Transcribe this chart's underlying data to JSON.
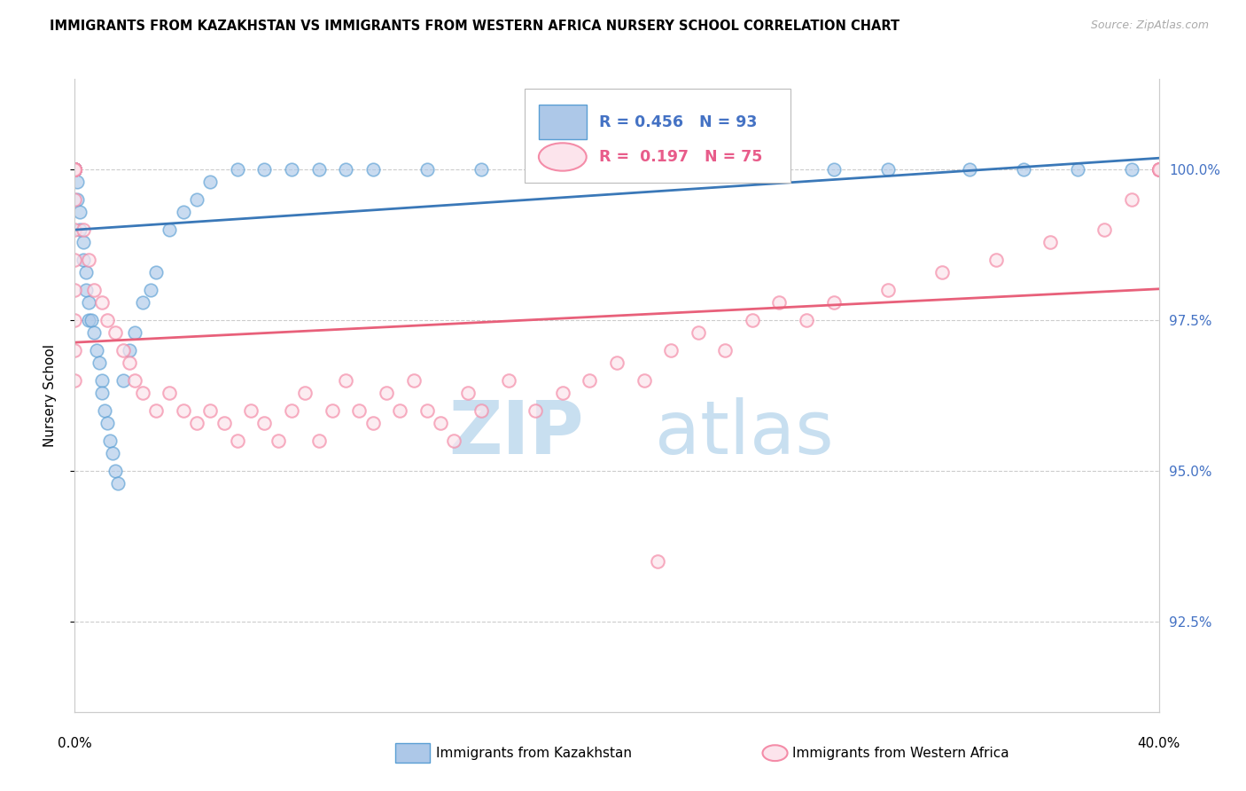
{
  "title": "IMMIGRANTS FROM KAZAKHSTAN VS IMMIGRANTS FROM WESTERN AFRICA NURSERY SCHOOL CORRELATION CHART",
  "source": "Source: ZipAtlas.com",
  "ylabel": "Nursery School",
  "y_ticks": [
    92.5,
    95.0,
    97.5,
    100.0
  ],
  "y_tick_labels": [
    "92.5%",
    "95.0%",
    "97.5%",
    "100.0%"
  ],
  "x_range": [
    0.0,
    40.0
  ],
  "y_range": [
    91.0,
    101.5
  ],
  "legend_blue_r": "R = 0.456",
  "legend_blue_n": "N = 93",
  "legend_pink_r": "R =  0.197",
  "legend_pink_n": "N = 75",
  "blue_fill_color": "#adc8e8",
  "blue_edge_color": "#5a9fd4",
  "pink_fill_color": "#fce4ec",
  "pink_edge_color": "#f48ca8",
  "blue_line_color": "#3a78b8",
  "pink_line_color": "#e8607a",
  "legend_blue_color": "#4472c4",
  "legend_pink_color": "#e85c8a",
  "tick_color": "#4472c4",
  "grid_color": "#cccccc",
  "watermark_zip_color": "#c8dff0",
  "watermark_atlas_color": "#c8dff0",
  "scatter_blue_x": [
    0.0,
    0.0,
    0.0,
    0.0,
    0.0,
    0.0,
    0.0,
    0.0,
    0.0,
    0.0,
    0.0,
    0.0,
    0.0,
    0.0,
    0.0,
    0.0,
    0.0,
    0.0,
    0.0,
    0.0,
    0.0,
    0.0,
    0.0,
    0.0,
    0.0,
    0.0,
    0.0,
    0.0,
    0.0,
    0.0,
    0.0,
    0.0,
    0.0,
    0.0,
    0.0,
    0.0,
    0.0,
    0.0,
    0.0,
    0.0,
    0.1,
    0.1,
    0.2,
    0.2,
    0.3,
    0.3,
    0.4,
    0.4,
    0.5,
    0.5,
    0.6,
    0.7,
    0.8,
    0.9,
    1.0,
    1.0,
    1.1,
    1.2,
    1.3,
    1.4,
    1.5,
    1.6,
    1.8,
    2.0,
    2.2,
    2.5,
    2.8,
    3.0,
    3.5,
    4.0,
    4.5,
    5.0,
    6.0,
    7.0,
    8.0,
    9.0,
    10.0,
    11.0,
    13.0,
    15.0,
    18.0,
    20.0,
    22.0,
    25.0,
    28.0,
    30.0,
    33.0,
    35.0,
    37.0,
    39.0,
    40.0,
    40.0,
    40.0
  ],
  "scatter_blue_y": [
    100.0,
    100.0,
    100.0,
    100.0,
    100.0,
    100.0,
    100.0,
    100.0,
    100.0,
    100.0,
    100.0,
    100.0,
    100.0,
    100.0,
    100.0,
    100.0,
    100.0,
    100.0,
    100.0,
    100.0,
    100.0,
    100.0,
    100.0,
    100.0,
    100.0,
    100.0,
    100.0,
    100.0,
    100.0,
    100.0,
    100.0,
    100.0,
    100.0,
    100.0,
    100.0,
    100.0,
    100.0,
    100.0,
    100.0,
    100.0,
    99.8,
    99.5,
    99.3,
    99.0,
    98.8,
    98.5,
    98.3,
    98.0,
    97.8,
    97.5,
    97.5,
    97.3,
    97.0,
    96.8,
    96.5,
    96.3,
    96.0,
    95.8,
    95.5,
    95.3,
    95.0,
    94.8,
    96.5,
    97.0,
    97.3,
    97.8,
    98.0,
    98.3,
    99.0,
    99.3,
    99.5,
    99.8,
    100.0,
    100.0,
    100.0,
    100.0,
    100.0,
    100.0,
    100.0,
    100.0,
    100.0,
    100.0,
    100.0,
    100.0,
    100.0,
    100.0,
    100.0,
    100.0,
    100.0,
    100.0,
    100.0,
    100.0,
    100.0
  ],
  "scatter_pink_x": [
    0.0,
    0.0,
    0.0,
    0.0,
    0.0,
    0.0,
    0.0,
    0.0,
    0.0,
    0.0,
    0.0,
    0.0,
    0.0,
    0.0,
    0.0,
    0.3,
    0.5,
    0.7,
    1.0,
    1.2,
    1.5,
    1.8,
    2.0,
    2.2,
    2.5,
    3.0,
    3.5,
    4.0,
    4.5,
    5.0,
    5.5,
    6.0,
    6.5,
    7.0,
    7.5,
    8.0,
    8.5,
    9.0,
    9.5,
    10.0,
    10.5,
    11.0,
    11.5,
    12.0,
    12.5,
    13.0,
    13.5,
    14.0,
    14.5,
    15.0,
    16.0,
    17.0,
    18.0,
    19.0,
    20.0,
    21.0,
    22.0,
    23.0,
    24.0,
    25.0,
    26.0,
    27.0,
    28.0,
    30.0,
    32.0,
    34.0,
    36.0,
    38.0,
    39.0,
    40.0,
    40.0,
    40.0,
    40.0,
    40.0,
    21.5
  ],
  "scatter_pink_y": [
    100.0,
    100.0,
    100.0,
    100.0,
    100.0,
    100.0,
    100.0,
    100.0,
    99.5,
    99.0,
    98.5,
    98.0,
    97.5,
    97.0,
    96.5,
    99.0,
    98.5,
    98.0,
    97.8,
    97.5,
    97.3,
    97.0,
    96.8,
    96.5,
    96.3,
    96.0,
    96.3,
    96.0,
    95.8,
    96.0,
    95.8,
    95.5,
    96.0,
    95.8,
    95.5,
    96.0,
    96.3,
    95.5,
    96.0,
    96.5,
    96.0,
    95.8,
    96.3,
    96.0,
    96.5,
    96.0,
    95.8,
    95.5,
    96.3,
    96.0,
    96.5,
    96.0,
    96.3,
    96.5,
    96.8,
    96.5,
    97.0,
    97.3,
    97.0,
    97.5,
    97.8,
    97.5,
    97.8,
    98.0,
    98.3,
    98.5,
    98.8,
    99.0,
    99.5,
    100.0,
    100.0,
    100.0,
    100.0,
    100.0,
    93.5
  ]
}
